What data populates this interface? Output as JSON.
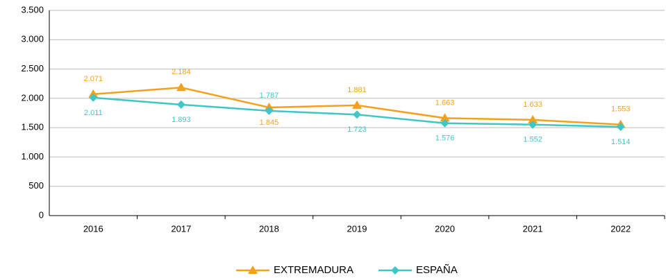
{
  "chart_data": {
    "type": "line",
    "categories": [
      "2016",
      "2017",
      "2018",
      "2019",
      "2020",
      "2021",
      "2022"
    ],
    "series": [
      {
        "name": "EXTREMADURA",
        "color": "#f5a01a",
        "values": [
          2071,
          2184,
          1845,
          1881,
          1663,
          1633,
          1553
        ],
        "value_labels": [
          "2.071",
          "2.184",
          "1.845",
          "1.881",
          "1.663",
          "1.633",
          "1.553"
        ]
      },
      {
        "name": "ESPAÑA",
        "color": "#3fc6c6",
        "values": [
          2011,
          1893,
          1787,
          1723,
          1576,
          1552,
          1514
        ],
        "value_labels": [
          "2.011",
          "1.893",
          "1.787",
          "1.723",
          "1.576",
          "1.552",
          "1.514"
        ]
      }
    ],
    "ylim": [
      0,
      3500
    ],
    "yticks": [
      {
        "value": 0,
        "label": "0"
      },
      {
        "value": 500,
        "label": "500"
      },
      {
        "value": 1000,
        "label": "1.000"
      },
      {
        "value": 1500,
        "label": "1.500"
      },
      {
        "value": 2000,
        "label": "2.000"
      },
      {
        "value": 2500,
        "label": "2.500"
      },
      {
        "value": 3000,
        "label": "3.000"
      },
      {
        "value": 3500,
        "label": "3.500"
      }
    ],
    "grid": true,
    "legend": "bottom"
  }
}
